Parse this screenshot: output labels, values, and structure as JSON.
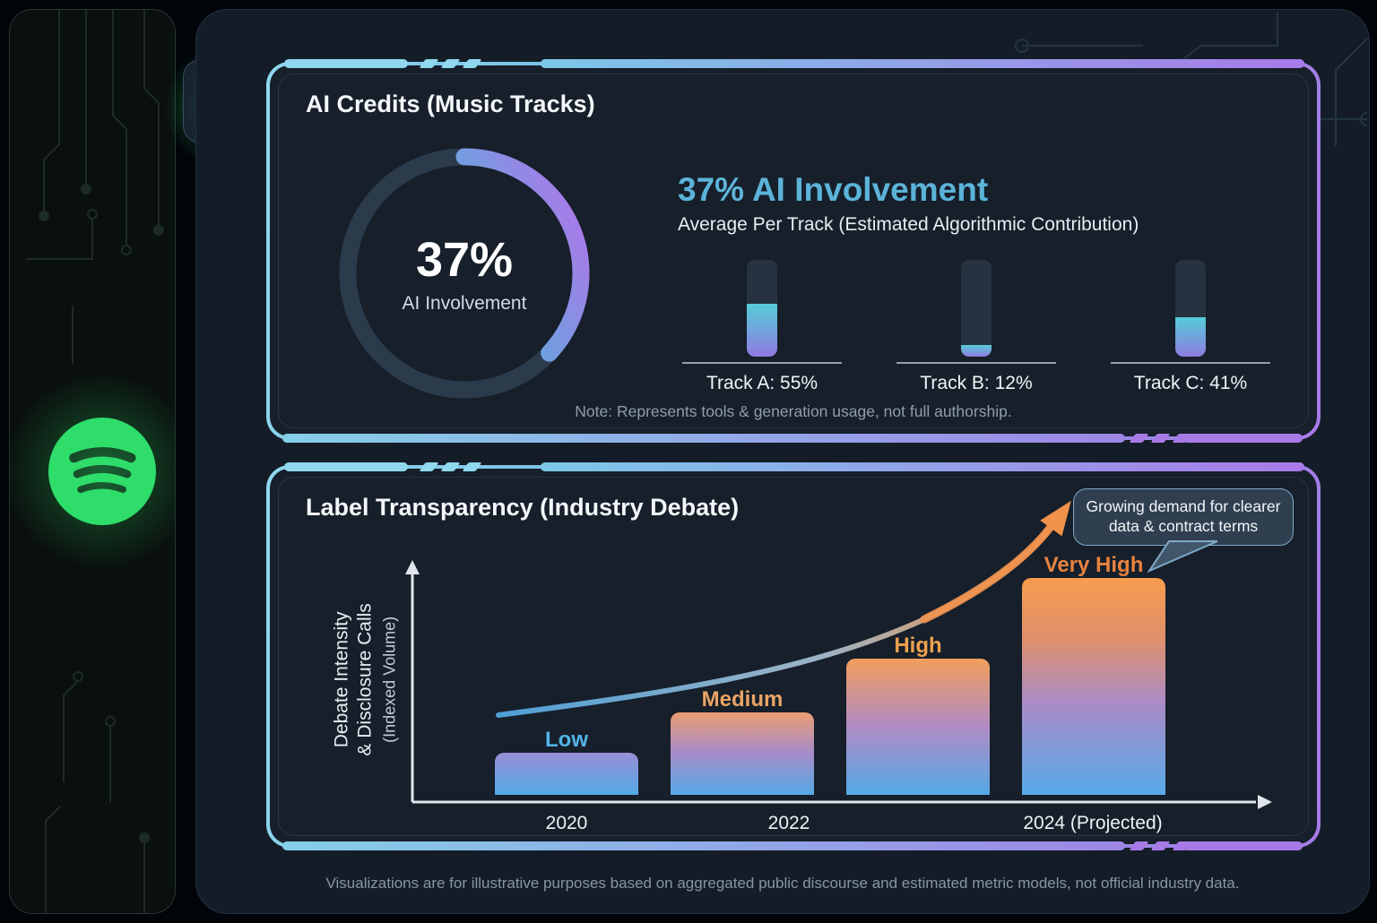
{
  "sidebar": {
    "logo": "spotify-logo",
    "menu_icon": "hamburger-menu",
    "collapse_icon": "collapse-left-arrow"
  },
  "panel_ai_credits": {
    "title": "AI Credits (Music Tracks)",
    "donut_value": "37%",
    "donut_label": "AI Involvement",
    "headline": "37% AI Involvement",
    "subheadline": "Average Per Track (Estimated Algorithmic Contribution)",
    "tracks": [
      {
        "label": "Track A: 55%",
        "pct": 55
      },
      {
        "label": "Track B: 12%",
        "pct": 12
      },
      {
        "label": "Track C: 41%",
        "pct": 41
      }
    ],
    "note": "Note: Represents tools & generation usage, not full authorship."
  },
  "panel_transparency": {
    "title": "Label Transparency (Industry Debate)",
    "y_axis_line1": "Debate Intensity",
    "y_axis_line2": "& Disclosure Calls",
    "y_axis_sublabel": "(Indexed Volume)",
    "callout_line1": "Growing demand for clearer",
    "callout_line2": "data & contract terms"
  },
  "footer": "Visualizations are for illustrative purposes based on aggregated public discourse and estimated metric models, not official industry data.",
  "colors": {
    "spotify_green": "#2edd6a",
    "accent_cyan": "#8fd8ee",
    "accent_purple": "#a97ae9",
    "heading_blue": "#5cb3d9",
    "trend_orange": "#f0924a"
  },
  "chart_data": [
    {
      "type": "pie",
      "subtype": "donut-progress",
      "title": "AI Credits (Music Tracks)",
      "value_pct": 37,
      "center_value_label": "37%",
      "center_label": "AI Involvement",
      "arc_gradient": [
        "#8ce0f2",
        "#a57ce8"
      ],
      "track_color": "#2b3b4c",
      "mini_gauges": [
        {
          "name": "Track A",
          "pct": 55
        },
        {
          "name": "Track B",
          "pct": 12
        },
        {
          "name": "Track C",
          "pct": 41
        }
      ],
      "note": "Note: Represents tools & generation usage, not full authorship."
    },
    {
      "type": "bar",
      "title": "Label Transparency (Industry Debate)",
      "ylabel": "Debate Intensity & Disclosure Calls (Indexed Volume)",
      "x_tick_labels": [
        "2020",
        "2022",
        "2024 (Projected)"
      ],
      "bars": [
        {
          "label": "Low",
          "value": 47,
          "label_color": "#53b4ea"
        },
        {
          "label": "Medium",
          "value": 92,
          "label_color": "#e9a464"
        },
        {
          "label": "High",
          "value": 152,
          "label_color": "#eda14f"
        },
        {
          "label": "Very High",
          "value": 242,
          "label_color": "#e8833f"
        }
      ],
      "value_unit": "indexed volume (relative px height)",
      "grid": false,
      "legend": "none",
      "annotation": "Growing demand for clearer data & contract terms",
      "trend": "rising curve arrow, blue-to-orange gradient"
    }
  ]
}
